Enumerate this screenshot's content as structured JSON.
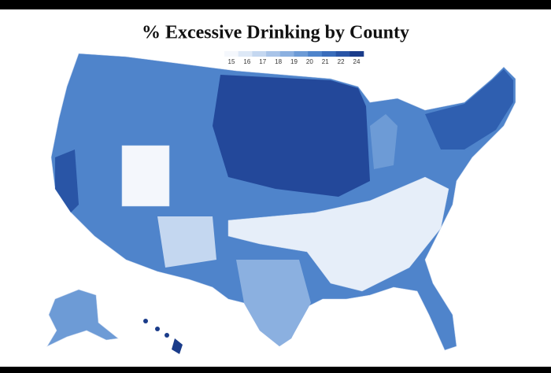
{
  "title": "% Excessive Drinking by County",
  "legend": {
    "ticks": [
      15,
      16,
      17,
      18,
      19,
      20,
      21,
      22,
      24
    ],
    "colors": [
      "#f4f7fc",
      "#dde8f6",
      "#c4d7f0",
      "#a9c4e8",
      "#8bb0e0",
      "#6d9bd6",
      "#4f84cb",
      "#3a6dbb",
      "#2955a6",
      "#1a3c8a"
    ]
  }
}
